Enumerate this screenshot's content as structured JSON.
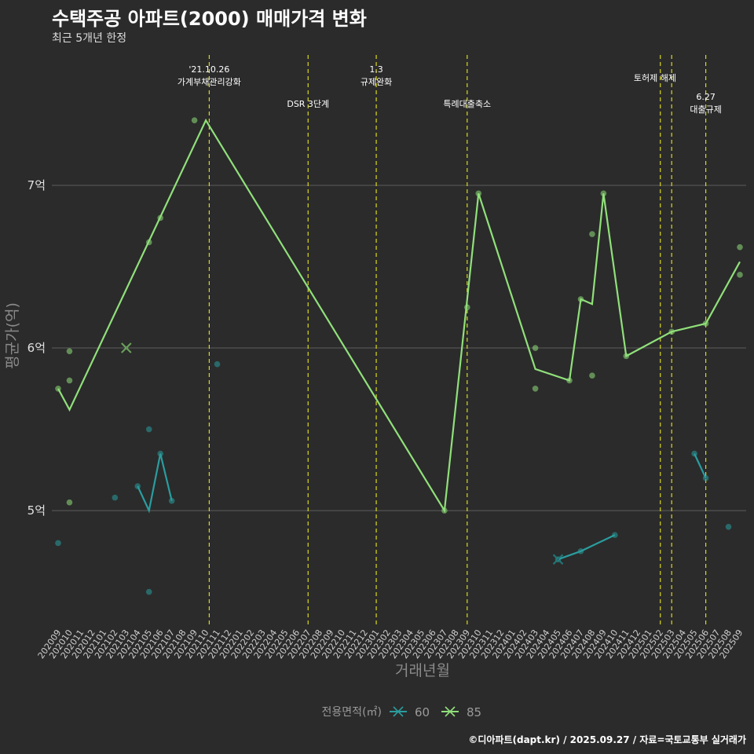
{
  "title": "수택주공 아파트(2000) 매매가격 변화",
  "subtitle": "최근 5개년 한정",
  "footer": "©디아파트(dapt.kr) / 2025.09.27 / 자료=국토교통부 실거래가",
  "chart_data": {
    "type": "line",
    "xlabel": "거래년월",
    "ylabel": "평균가(억)",
    "ylim": [
      4.3,
      7.85
    ],
    "y_ticks": [
      {
        "v": 5,
        "label": "5억"
      },
      {
        "v": 6,
        "label": "6억"
      },
      {
        "v": 7,
        "label": "7억"
      }
    ],
    "categories": [
      "202009",
      "202010",
      "202011",
      "202012",
      "202101",
      "202102",
      "202103",
      "202104",
      "202105",
      "202106",
      "202107",
      "202108",
      "202109",
      "202110",
      "202111",
      "202112",
      "202201",
      "202202",
      "202203",
      "202204",
      "202205",
      "202206",
      "202207",
      "202208",
      "202209",
      "202210",
      "202211",
      "202212",
      "202301",
      "202302",
      "202303",
      "202304",
      "202305",
      "202306",
      "202307",
      "202308",
      "202309",
      "202310",
      "202311",
      "202312",
      "202401",
      "202402",
      "202403",
      "202404",
      "202405",
      "202406",
      "202407",
      "202408",
      "202409",
      "202410",
      "202411",
      "202412",
      "202501",
      "202502",
      "202503",
      "202504",
      "202505",
      "202506",
      "202507",
      "202508",
      "202509"
    ],
    "legend_title": "전용면적(㎡)",
    "legend_position": "bottom",
    "colors": {
      "60": "#2a9d9f",
      "85": "#90e07a",
      "event": "#d8d820",
      "grid": "#5e5e5e"
    },
    "series": [
      {
        "name": "60",
        "line": [
          [
            "202104",
            5.15
          ],
          [
            "202105",
            5.0
          ],
          [
            "202106",
            5.35
          ],
          [
            "202107",
            5.06
          ]
        ],
        "line2": [
          [
            "202405",
            4.7
          ],
          [
            "202407",
            4.75
          ],
          [
            "202410",
            4.85
          ]
        ],
        "line3": [
          [
            "202505",
            5.35
          ],
          [
            "202506",
            5.2
          ]
        ],
        "points": [
          [
            "202009",
            4.8
          ],
          [
            "202102",
            5.08
          ],
          [
            "202104",
            5.15
          ],
          [
            "202105",
            5.5
          ],
          [
            "202105",
            4.5
          ],
          [
            "202106",
            5.35
          ],
          [
            "202107",
            5.06
          ],
          [
            "202111",
            5.9
          ],
          [
            "202405",
            4.7
          ],
          [
            "202407",
            4.75
          ],
          [
            "202410",
            4.85
          ],
          [
            "202505",
            5.35
          ],
          [
            "202506",
            5.2
          ],
          [
            "202508",
            4.9
          ]
        ],
        "cross": [
          "202405",
          4.7
        ]
      },
      {
        "name": "85",
        "line": [
          [
            "202009",
            5.75
          ],
          [
            "202010",
            5.62
          ],
          [
            "202110",
            7.4
          ],
          [
            "202307",
            5.0
          ],
          [
            "202310",
            6.95
          ],
          [
            "202403",
            5.87
          ],
          [
            "202406",
            5.8
          ],
          [
            "202407",
            6.3
          ],
          [
            "202408",
            6.27
          ],
          [
            "202409",
            6.95
          ],
          [
            "202411",
            5.95
          ],
          [
            "202503",
            6.1
          ],
          [
            "202506",
            6.15
          ],
          [
            "202509",
            6.53
          ]
        ],
        "points": [
          [
            "202009",
            5.75
          ],
          [
            "202010",
            5.8
          ],
          [
            "202010",
            5.98
          ],
          [
            "202010",
            5.05
          ],
          [
            "202105",
            6.65
          ],
          [
            "202106",
            6.8
          ],
          [
            "202109",
            7.4
          ],
          [
            "202307",
            5.0
          ],
          [
            "202309",
            6.25
          ],
          [
            "202310",
            6.95
          ],
          [
            "202403",
            6.0
          ],
          [
            "202403",
            5.75
          ],
          [
            "202406",
            5.8
          ],
          [
            "202407",
            6.3
          ],
          [
            "202408",
            6.7
          ],
          [
            "202408",
            5.83
          ],
          [
            "202409",
            6.95
          ],
          [
            "202411",
            5.95
          ],
          [
            "202503",
            6.1
          ],
          [
            "202506",
            6.15
          ],
          [
            "202509",
            6.62
          ],
          [
            "202509",
            6.45
          ]
        ],
        "cross": [
          "202103",
          6.0
        ]
      }
    ],
    "events": [
      {
        "x": "202110",
        "x_offset": 0.3,
        "lines": [
          "'21.10.26",
          "가계부채관리강화"
        ],
        "row": 0
      },
      {
        "x": "202207",
        "x_offset": 0.0,
        "lines": [
          "DSR 3단계"
        ],
        "row": 1
      },
      {
        "x": "202301",
        "x_offset": 0.0,
        "lines": [
          "1.3",
          "규제완화"
        ],
        "row": 0
      },
      {
        "x": "202309",
        "x_offset": 0.0,
        "lines": [
          "특례대출축소"
        ],
        "row": 1
      },
      {
        "x": "202502",
        "x_offset": 0.0,
        "lines": [],
        "row": 0
      },
      {
        "x": "202503",
        "x_offset": 0.0,
        "lines": [
          "토허제 해제"
        ],
        "row": 0,
        "label_between": true
      },
      {
        "x": "202506",
        "x_offset": 0.0,
        "lines": [
          "6.27",
          "대출규제"
        ],
        "row": 2
      }
    ]
  }
}
